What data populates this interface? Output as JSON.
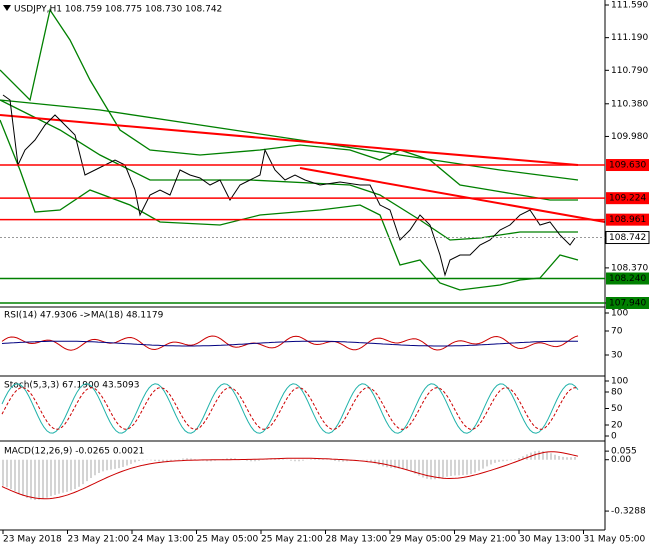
{
  "header": {
    "title": "USDJPY,H1 108.759 108.775 108.730 108.742"
  },
  "price_axis": {
    "ticks": [
      {
        "value": 111.59,
        "label": "111.590"
      },
      {
        "value": 111.19,
        "label": "111.190"
      },
      {
        "value": 110.79,
        "label": "110.790"
      },
      {
        "value": 110.38,
        "label": "110.380"
      },
      {
        "value": 109.98,
        "label": "109.980"
      },
      {
        "value": 108.37,
        "label": "108.370"
      },
      {
        "value": 107.94,
        "label": "107.940"
      }
    ],
    "levels": [
      {
        "value": 109.63,
        "label": "109.630",
        "color": "#ff0000"
      },
      {
        "value": 109.224,
        "label": "109.224",
        "color": "#ff0000"
      },
      {
        "value": 108.961,
        "label": "108.961",
        "color": "#ff0000"
      },
      {
        "value": 108.742,
        "label": "108.742",
        "color": "#000000"
      },
      {
        "value": 108.24,
        "label": "108.240",
        "color": "#008000"
      },
      {
        "value": 107.94,
        "label": "107.940",
        "color": "#008000"
      }
    ]
  },
  "rsi": {
    "label": "RSI(14) 47.9306 ->MA(18) 48.1179",
    "ylim": [
      0,
      100
    ],
    "ticks": [
      100,
      70,
      30
    ]
  },
  "stoch": {
    "label": "Stoch(5,3,3) 67.1900 43.5093",
    "ylim": [
      0,
      100
    ],
    "ticks": [
      100,
      80,
      50,
      20,
      0
    ]
  },
  "macd": {
    "label": "MACD(12,26,9) -0.0265 0.0021",
    "ylim": [
      -0.45,
      0.075
    ],
    "ticks": [
      {
        "value": 0.055,
        "label": "0.055"
      },
      {
        "value": 0,
        "label": "0.00"
      },
      {
        "value": -0.3288,
        "label": "-0.3288"
      }
    ]
  },
  "dates": [
    "23 May 2018",
    "23 May 21:00",
    "24 May 13:00",
    "25 May 05:00",
    "25 May 21:00",
    "28 May 13:00",
    "29 May 05:00",
    "29 May 21:00",
    "30 May 13:00",
    "31 May 05:00"
  ]
}
